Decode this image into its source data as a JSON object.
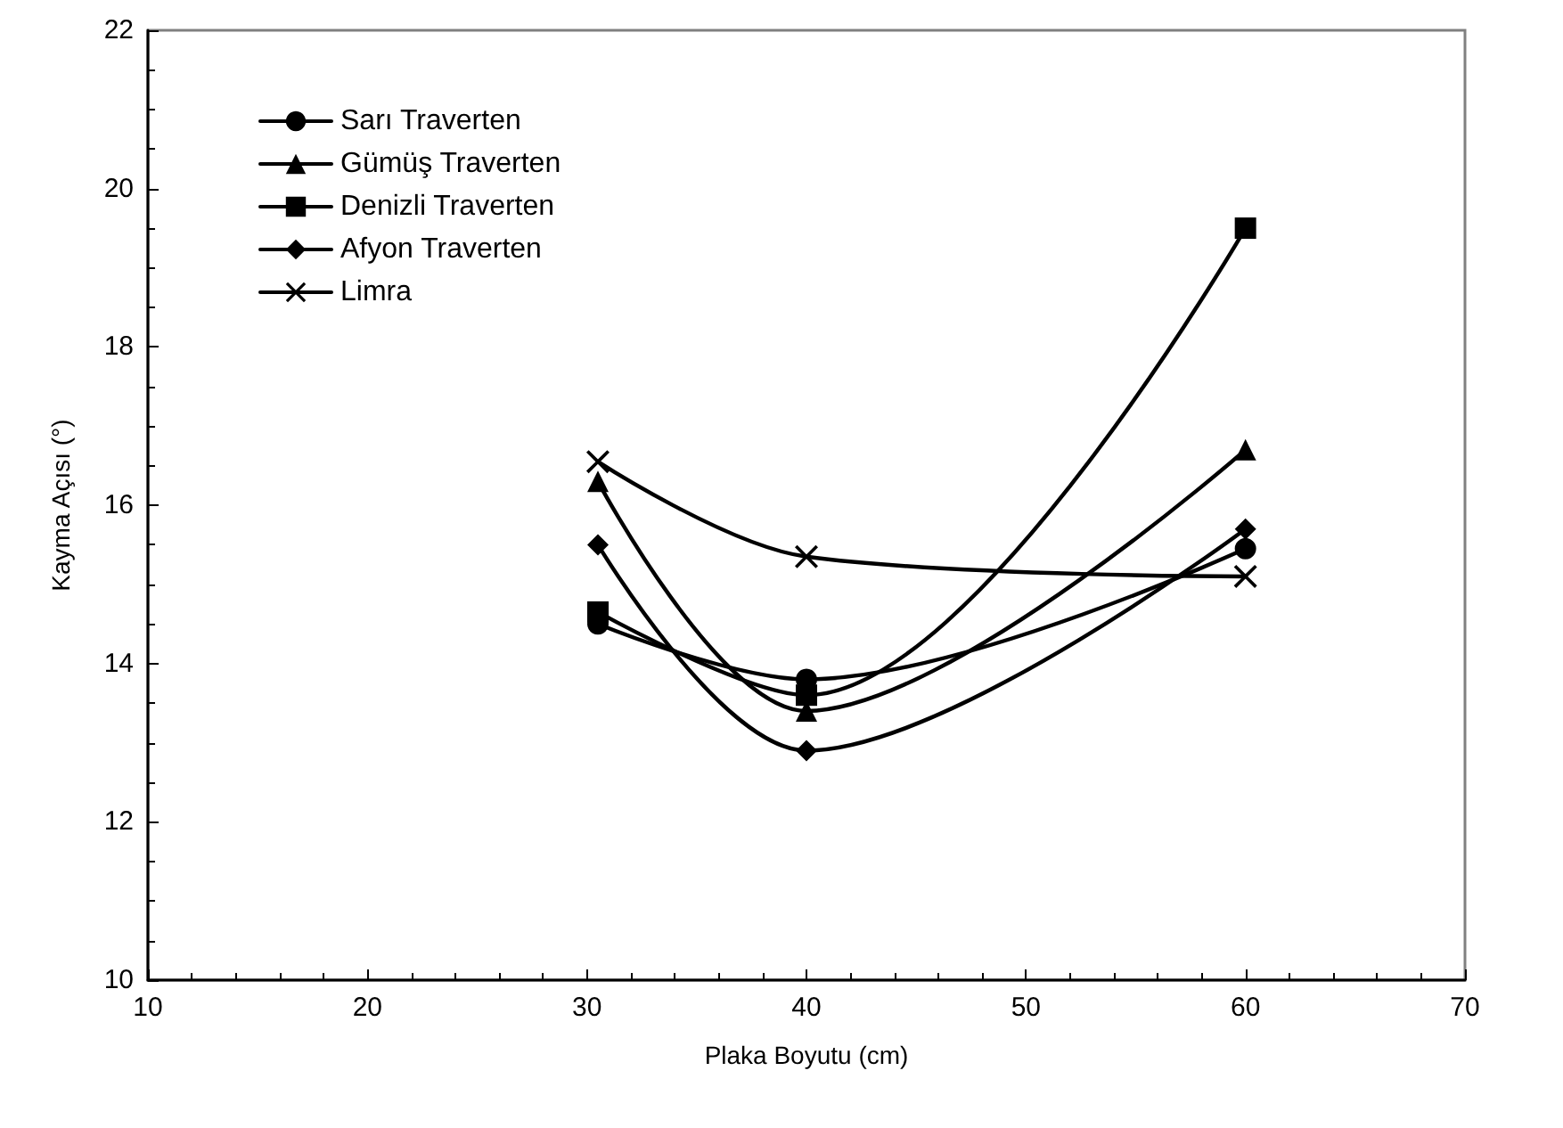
{
  "chart_data": {
    "type": "line",
    "xlabel": "Plaka Boyutu (cm)",
    "ylabel": "Kayma Açısı (°)",
    "x": [
      30.5,
      40,
      60
    ],
    "xlim": [
      10,
      70
    ],
    "xticks": [
      10,
      20,
      30,
      40,
      50,
      60,
      70
    ],
    "ylim": [
      10,
      22
    ],
    "yticks": [
      10,
      12,
      14,
      16,
      18,
      20,
      22
    ],
    "grid": false,
    "legend": "top left",
    "line_style": "solid",
    "series": [
      {
        "name": "Sarı Traverten",
        "color": "#000000",
        "marker": "circle",
        "values": [
          14.5,
          13.8,
          15.45
        ]
      },
      {
        "name": "Gümüş Traverten",
        "color": "#000000",
        "marker": "triangle",
        "values": [
          16.3,
          13.4,
          16.7
        ]
      },
      {
        "name": "Denizli Traverten",
        "color": "#000000",
        "marker": "square",
        "values": [
          14.65,
          13.6,
          19.5
        ]
      },
      {
        "name": "Afyon Traverten",
        "color": "#000000",
        "marker": "diamond",
        "values": [
          15.5,
          12.9,
          15.7
        ]
      },
      {
        "name": "Limra",
        "color": "#000000",
        "marker": "cross",
        "values": [
          16.55,
          15.35,
          15.1
        ]
      }
    ]
  }
}
